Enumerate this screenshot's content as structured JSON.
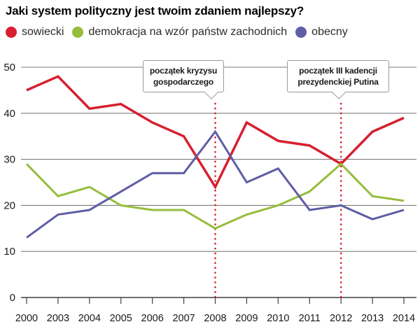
{
  "header": {
    "title": "Jaki system polityczny jest twoim zdaniem najlepszy?"
  },
  "legend": [
    {
      "label": "sowiecki",
      "color": "#d6202f"
    },
    {
      "label": "demokracja na wzór państw zachodnich",
      "color": "#96bd3c"
    },
    {
      "label": "obecny",
      "color": "#5f5da5"
    }
  ],
  "chart_data": {
    "type": "line",
    "title": "Jaki system polityczny jest twoim zdaniem najlepszy?",
    "x": [
      2000,
      2003,
      2004,
      2005,
      2006,
      2007,
      2008,
      2009,
      2010,
      2011,
      2012,
      2013,
      2014
    ],
    "series": [
      {
        "name": "sowiecki",
        "color": "#d6202f",
        "values": [
          45,
          48,
          41,
          42,
          38,
          35,
          24,
          38,
          34,
          33,
          29,
          36,
          39
        ]
      },
      {
        "name": "demokracja na wzór państw zachodnich",
        "color": "#96bd3c",
        "values": [
          29,
          22,
          24,
          20,
          19,
          19,
          15,
          18,
          20,
          23,
          29,
          22,
          21
        ]
      },
      {
        "name": "obecny",
        "color": "#5f5da5",
        "values": [
          13,
          18,
          19,
          23,
          27,
          27,
          36,
          25,
          28,
          19,
          20,
          17,
          19
        ]
      }
    ],
    "xlabel": "",
    "ylabel": "",
    "ylim": [
      0,
      50
    ],
    "yticks": [
      0,
      10,
      20,
      30,
      40,
      50
    ],
    "grid": true,
    "legend_position": "top",
    "annotations": [
      {
        "x": 2008,
        "label": "początek kryzysu gospodarczego",
        "line_color": "#d6202f",
        "line_style": "dotted"
      },
      {
        "x": 2012,
        "label": "początek III kadencji prezydenckiej Putina",
        "line_color": "#d6202f",
        "line_style": "dotted"
      }
    ]
  }
}
